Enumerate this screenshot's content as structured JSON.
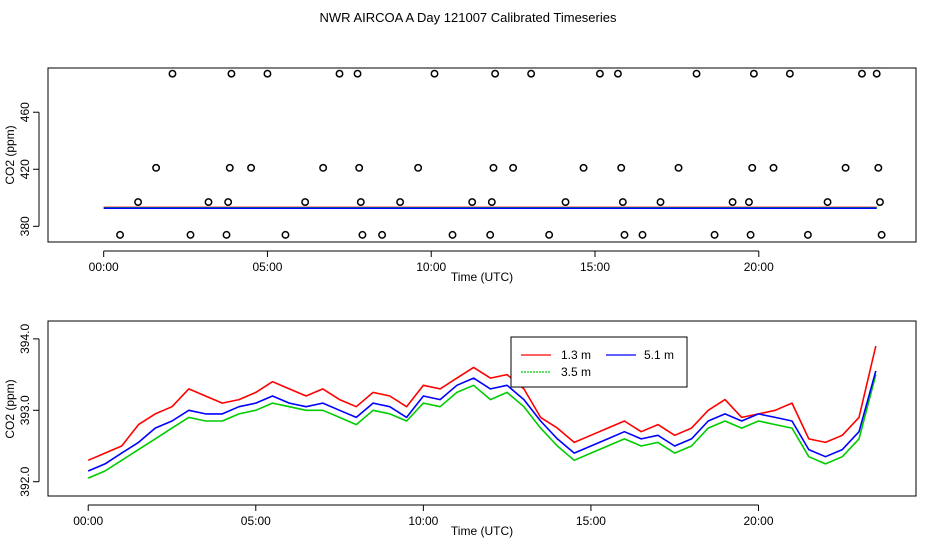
{
  "title": "NWR AIRCOA A  Day 121007  Calibrated Timeseries",
  "chart_data": [
    {
      "type": "scatter",
      "name": "calibration-standards",
      "xlabel": "Time (UTC)",
      "ylabel": "CO2 (ppm)",
      "xlim": [
        -1.7,
        24.8
      ],
      "ylim": [
        369,
        491
      ],
      "xticks": [
        0,
        5,
        10,
        15,
        20
      ],
      "xtick_labels": [
        "00:00",
        "05:00",
        "10:00",
        "15:00",
        "20:00"
      ],
      "yticks": [
        380,
        420,
        460
      ],
      "ytick_labels": [
        "380",
        "420",
        "460"
      ],
      "points": [
        [
          0.5,
          374
        ],
        [
          1.05,
          397
        ],
        [
          1.6,
          421
        ],
        [
          2.1,
          487
        ],
        [
          2.65,
          374
        ],
        [
          3.2,
          397
        ],
        [
          3.75,
          374
        ],
        [
          3.8,
          397
        ],
        [
          3.85,
          421
        ],
        [
          3.9,
          487
        ],
        [
          4.5,
          421
        ],
        [
          5.0,
          487
        ],
        [
          5.55,
          374
        ],
        [
          6.15,
          397
        ],
        [
          6.7,
          421
        ],
        [
          7.2,
          487
        ],
        [
          7.75,
          487
        ],
        [
          7.8,
          421
        ],
        [
          7.85,
          397
        ],
        [
          7.9,
          374
        ],
        [
          8.5,
          374
        ],
        [
          9.05,
          397
        ],
        [
          9.6,
          421
        ],
        [
          10.1,
          487
        ],
        [
          10.65,
          374
        ],
        [
          11.25,
          397
        ],
        [
          11.8,
          374
        ],
        [
          11.85,
          397
        ],
        [
          11.9,
          421
        ],
        [
          11.95,
          487
        ],
        [
          12.5,
          421
        ],
        [
          13.05,
          487
        ],
        [
          13.6,
          374
        ],
        [
          14.1,
          397
        ],
        [
          14.65,
          421
        ],
        [
          15.15,
          487
        ],
        [
          15.7,
          487
        ],
        [
          15.8,
          421
        ],
        [
          15.85,
          397
        ],
        [
          15.9,
          374
        ],
        [
          16.45,
          374
        ],
        [
          17.0,
          397
        ],
        [
          17.55,
          421
        ],
        [
          18.1,
          487
        ],
        [
          18.65,
          374
        ],
        [
          19.2,
          397
        ],
        [
          19.7,
          397
        ],
        [
          19.75,
          374
        ],
        [
          19.8,
          421
        ],
        [
          19.85,
          487
        ],
        [
          20.45,
          421
        ],
        [
          20.95,
          487
        ],
        [
          21.5,
          374
        ],
        [
          22.1,
          397
        ],
        [
          22.65,
          421
        ],
        [
          23.15,
          487
        ],
        [
          23.6,
          487
        ],
        [
          23.65,
          421
        ],
        [
          23.7,
          397
        ],
        [
          23.75,
          374
        ]
      ],
      "series": [
        {
          "name": "1.3 m",
          "color": "#ff0000",
          "value": 393.0
        },
        {
          "name": "3.5 m",
          "color": "#00cc00",
          "value": 393.0
        },
        {
          "name": "5.1 m",
          "color": "#0000ff",
          "value": 393.0
        }
      ]
    },
    {
      "type": "line",
      "name": "inlet-timeseries",
      "xlabel": "Time (UTC)",
      "ylabel": "CO2 (ppm)",
      "xlim": [
        -1.2,
        24.7
      ],
      "ylim": [
        391.8,
        394.25
      ],
      "xticks": [
        0,
        5,
        10,
        15,
        20
      ],
      "xtick_labels": [
        "00:00",
        "05:00",
        "10:00",
        "15:00",
        "20:00"
      ],
      "yticks": [
        392.0,
        393.0,
        394.0
      ],
      "ytick_labels": [
        "392.0",
        "393.0",
        "394.0"
      ],
      "legend": [
        "1.3 m",
        "3.5 m",
        "5.1 m"
      ],
      "x": [
        0,
        0.5,
        1,
        1.5,
        2,
        2.5,
        3,
        3.5,
        4,
        4.5,
        5,
        5.5,
        6,
        6.5,
        7,
        7.5,
        8,
        8.5,
        9,
        9.5,
        10,
        10.5,
        11,
        11.5,
        12,
        12.5,
        13,
        13.5,
        14,
        14.5,
        15,
        15.5,
        16,
        16.5,
        17,
        17.5,
        18,
        18.5,
        19,
        19.5,
        20,
        20.5,
        21,
        21.5,
        22,
        22.5,
        23,
        23.5
      ],
      "series": [
        {
          "name": "1.3 m",
          "color": "#ff0000",
          "values": [
            392.3,
            392.4,
            392.5,
            392.8,
            392.95,
            393.05,
            393.3,
            393.2,
            393.1,
            393.15,
            393.25,
            393.4,
            393.3,
            393.2,
            393.3,
            393.15,
            393.05,
            393.25,
            393.2,
            393.05,
            393.35,
            393.3,
            393.45,
            393.6,
            393.45,
            393.5,
            393.3,
            392.9,
            392.75,
            392.55,
            392.65,
            392.75,
            392.85,
            392.7,
            392.8,
            392.65,
            392.75,
            393.0,
            393.15,
            392.9,
            392.95,
            393.0,
            393.1,
            392.6,
            392.55,
            392.65,
            392.9,
            393.9
          ]
        },
        {
          "name": "3.5 m",
          "color": "#00cc00",
          "values": [
            392.05,
            392.15,
            392.3,
            392.45,
            392.6,
            392.75,
            392.9,
            392.85,
            392.85,
            392.95,
            393.0,
            393.1,
            393.05,
            393.0,
            393.0,
            392.9,
            392.8,
            393.0,
            392.95,
            392.85,
            393.1,
            393.05,
            393.25,
            393.35,
            393.15,
            393.25,
            393.05,
            392.75,
            392.5,
            392.3,
            392.4,
            392.5,
            392.6,
            392.5,
            392.55,
            392.4,
            392.5,
            392.75,
            392.85,
            392.75,
            392.85,
            392.8,
            392.75,
            392.35,
            392.25,
            392.35,
            392.6,
            393.5
          ]
        },
        {
          "name": "5.1 m",
          "color": "#0000ff",
          "values": [
            392.15,
            392.25,
            392.4,
            392.55,
            392.75,
            392.85,
            393.0,
            392.95,
            392.95,
            393.05,
            393.1,
            393.2,
            393.1,
            393.05,
            393.1,
            393.0,
            392.9,
            393.1,
            393.05,
            392.9,
            393.2,
            393.15,
            393.35,
            393.45,
            393.3,
            393.35,
            393.15,
            392.85,
            392.6,
            392.4,
            392.5,
            392.6,
            392.7,
            392.6,
            392.65,
            392.5,
            392.6,
            392.85,
            392.95,
            392.85,
            392.95,
            392.9,
            392.85,
            392.45,
            392.35,
            392.45,
            392.7,
            393.55
          ]
        }
      ]
    }
  ]
}
